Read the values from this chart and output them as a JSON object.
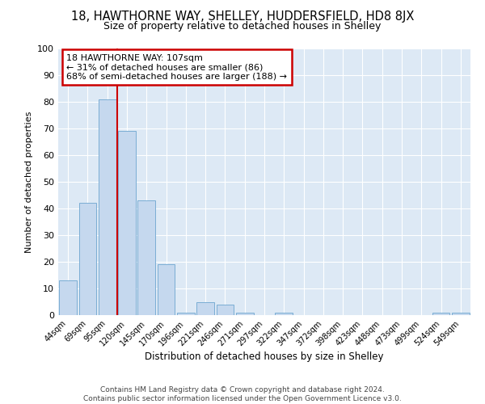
{
  "title": "18, HAWTHORNE WAY, SHELLEY, HUDDERSFIELD, HD8 8JX",
  "subtitle": "Size of property relative to detached houses in Shelley",
  "xlabel": "Distribution of detached houses by size in Shelley",
  "ylabel": "Number of detached properties",
  "bar_labels": [
    "44sqm",
    "69sqm",
    "95sqm",
    "120sqm",
    "145sqm",
    "170sqm",
    "196sqm",
    "221sqm",
    "246sqm",
    "271sqm",
    "297sqm",
    "322sqm",
    "347sqm",
    "372sqm",
    "398sqm",
    "423sqm",
    "448sqm",
    "473sqm",
    "499sqm",
    "524sqm",
    "549sqm"
  ],
  "bar_values": [
    13,
    42,
    81,
    69,
    43,
    19,
    1,
    5,
    4,
    1,
    0,
    1,
    0,
    0,
    0,
    0,
    0,
    0,
    0,
    1,
    1
  ],
  "bar_color": "#c5d8ee",
  "bar_edge_color": "#7aadd4",
  "background_color": "#dde9f5",
  "grid_color": "#ffffff",
  "vline_x": 2.5,
  "vline_color": "#cc0000",
  "annotation_text": "18 HAWTHORNE WAY: 107sqm\n← 31% of detached houses are smaller (86)\n68% of semi-detached houses are larger (188) →",
  "annotation_box_color": "#ffffff",
  "annotation_box_edge": "#cc0000",
  "footnote": "Contains HM Land Registry data © Crown copyright and database right 2024.\nContains public sector information licensed under the Open Government Licence v3.0.",
  "ylim": [
    0,
    100
  ],
  "fig_bg": "#ffffff"
}
